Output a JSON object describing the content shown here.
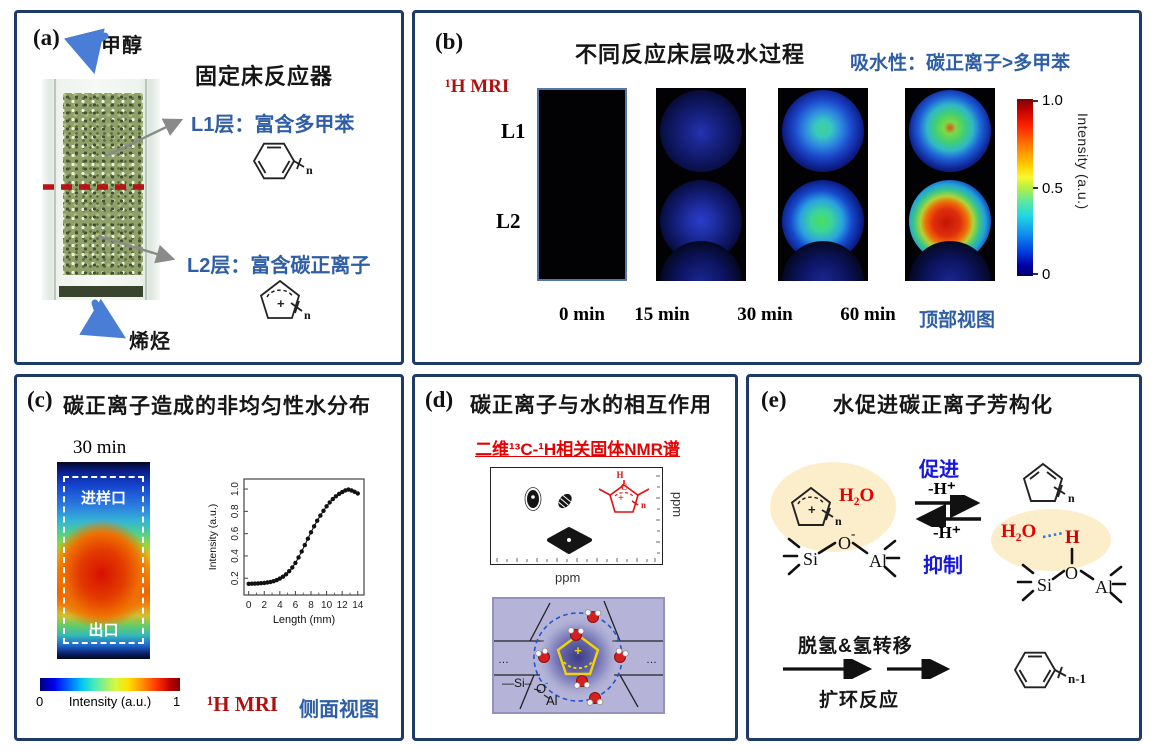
{
  "colors": {
    "panel_border": "#1e3a66",
    "annotation_blue": "#2e5ea6",
    "scheme_blue": "#1616dd",
    "mri_red": "#b40f0f",
    "bright_red": "#e60000",
    "cream_highlight": "#fdeecb",
    "lavender": "#b5b4d8"
  },
  "panel_a": {
    "label": "(a)",
    "title": "固定床反应器",
    "feed": "甲醇",
    "product": "烯烃",
    "l1": "L1层：富含多甲苯",
    "l2": "L2层：富含碳正离子",
    "l1_sub": "n",
    "l2_sub": "n"
  },
  "panel_b": {
    "label": "(b)",
    "title": "不同反应床层吸水过程",
    "conclusion": "吸水性：碳正离子>多甲苯",
    "technique": "¹H MRI",
    "rows": [
      "L1",
      "L2"
    ],
    "times": [
      "0 min",
      "15 min",
      "30 min",
      "60 min"
    ],
    "view": "顶部视图",
    "colorbar": {
      "label": "Intensity (a.u.)",
      "ticks": [
        "1.0",
        "0.5",
        "0"
      ]
    }
  },
  "panel_c": {
    "label": "(c)",
    "title": "碳正离子造成的非均匀性水分布",
    "time": "30 min",
    "inlet": "进样口",
    "outlet": "出口",
    "colorbar": {
      "min": "0",
      "label": "Intensity (a.u.)",
      "max": "1"
    },
    "technique": "¹H MRI",
    "view": "侧面视图"
  },
  "chart_data": {
    "type": "scatter",
    "xlabel": "Length (mm)",
    "ylabel": "Intensity (a.u.)",
    "xlim": [
      -0.6,
      14.8
    ],
    "ylim": [
      0.05,
      1.09
    ],
    "xticks": [
      0,
      2,
      4,
      6,
      8,
      10,
      12,
      14
    ],
    "xticks_minor": [
      1,
      3,
      5,
      7,
      9,
      11,
      13
    ],
    "yticks": [
      0.2,
      0.4,
      0.6,
      0.8,
      1.0
    ],
    "x": [
      0,
      0.4,
      0.8,
      1.2,
      1.6,
      2,
      2.4,
      2.8,
      3.2,
      3.6,
      4,
      4.4,
      4.8,
      5.2,
      5.6,
      6,
      6.4,
      6.8,
      7.2,
      7.6,
      8,
      8.4,
      8.8,
      9.2,
      9.6,
      10,
      10.4,
      10.8,
      11.2,
      11.6,
      12,
      12.4,
      12.8,
      13.2,
      13.6,
      14
    ],
    "y": [
      0.15,
      0.151,
      0.152,
      0.154,
      0.156,
      0.158,
      0.162,
      0.167,
      0.174,
      0.184,
      0.197,
      0.214,
      0.236,
      0.263,
      0.297,
      0.338,
      0.386,
      0.44,
      0.497,
      0.555,
      0.612,
      0.666,
      0.716,
      0.762,
      0.805,
      0.845,
      0.88,
      0.91,
      0.935,
      0.956,
      0.973,
      0.988,
      0.995,
      0.987,
      0.975,
      0.96
    ],
    "marker_color": "#111111",
    "grid": false,
    "legend": null
  },
  "panel_d": {
    "label": "(d)",
    "title": "碳正离子与水的相互作用",
    "subtitle": "二维¹³C-¹H相关固体NMR谱",
    "xlabel": "ppm",
    "ylabel": "ppm",
    "mol": {
      "h": "H",
      "c": "C",
      "plus": "+",
      "n": "n"
    },
    "framework": {
      "si": "Si",
      "o": "O",
      "minus": "-",
      "al": "Al",
      "plus": "+",
      "dots_left": "…",
      "dots_right": "…"
    }
  },
  "panel_e": {
    "label": "(e)",
    "title": "水促进碳正离子芳构化",
    "promote": "促进",
    "inhibit": "抑制",
    "minus_h_top": "-H⁺",
    "minus_h_bottom": "-H⁺",
    "water_left": "H₂O",
    "water_right": "H₂O",
    "h_bridge": "H",
    "left_n": "n",
    "right_n": "n",
    "plus": "+",
    "si_left": "Si",
    "o_left": "O",
    "o_minus": "-",
    "al_left": "Al",
    "si_right": "Si",
    "o_right": "O",
    "al_right": "Al",
    "step_top": "脱氢&氢转移",
    "step_bottom": "扩环反应",
    "product_n": "n-1"
  }
}
